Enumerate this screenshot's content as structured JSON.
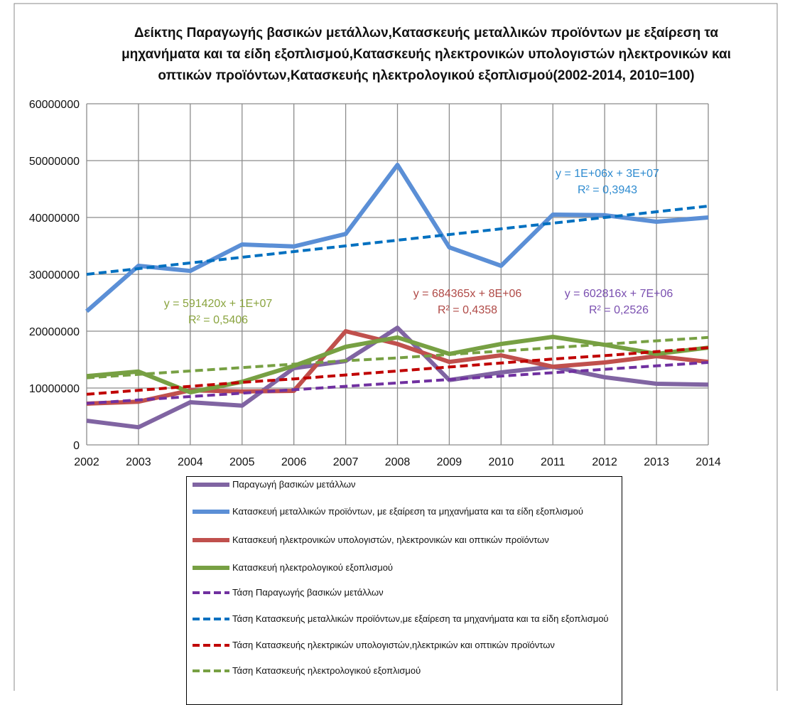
{
  "chart_data": {
    "type": "line",
    "title": "Δείκτης Παραγωγής  βασικών μετάλλων,Κατασκευής μεταλλικών προϊόντων με εξαίρεση τα μηχανήματα και τα είδη εξοπλισμού,Κατασκευής ηλεκτρονικών υπολογιστών ηλεκτρονικών και οπτικών προϊόντων,Κατασκευής ηλεκτρολογικού εξοπλισμού(2002-2014, 2010=100)",
    "x": [
      2002,
      2003,
      2004,
      2005,
      2006,
      2007,
      2008,
      2009,
      2010,
      2011,
      2012,
      2013,
      2014
    ],
    "xlim": [
      2002,
      2014
    ],
    "xticks": [
      2002,
      2003,
      2004,
      2005,
      2006,
      2007,
      2008,
      2009,
      2010,
      2011,
      2012,
      2013,
      2014
    ],
    "ylim": [
      0,
      60000000
    ],
    "yticks": [
      0,
      10000000,
      20000000,
      30000000,
      40000000,
      50000000,
      60000000
    ],
    "grid": true,
    "series": [
      {
        "name": "Παραγωγή βασικών μετάλλων",
        "color": "#8064a2",
        "style": "solid",
        "values": [
          4250000,
          3100000,
          7500000,
          6900000,
          13500000,
          14750000,
          20600000,
          11400000,
          12750000,
          13750000,
          11900000,
          10750000,
          10600000
        ]
      },
      {
        "name": "Κατασκευή μεταλλικών προϊόντων, με εξαίρεση τα μηχανήματα και τα είδη εξοπλισμού",
        "color": "#5b8fd6",
        "style": "solid",
        "values": [
          23500000,
          31500000,
          30600000,
          35250000,
          34900000,
          37100000,
          49250000,
          34750000,
          31500000,
          40500000,
          40400000,
          39250000,
          40000000
        ]
      },
      {
        "name": "Κατασκευή ηλεκτρονικών υπολογιστών, ηλεκτρονικών και οπτικών προϊόντων",
        "color": "#c0504d",
        "style": "solid",
        "values": [
          7250000,
          7600000,
          9600000,
          9400000,
          9500000,
          20000000,
          17750000,
          14600000,
          15750000,
          13750000,
          14500000,
          15600000,
          14600000
        ]
      },
      {
        "name": "Κατασκευή ηλεκτρολογικού εξοπλισμού",
        "color": "#77a043",
        "style": "solid",
        "values": [
          12100000,
          12900000,
          9250000,
          11100000,
          13900000,
          17250000,
          18900000,
          16000000,
          17750000,
          19000000,
          17600000,
          16000000,
          17100000
        ]
      },
      {
        "name": "Τάση Παραγωγής βασικών μετάλλων",
        "color": "#7030a0",
        "style": "dashed",
        "values": [
          7300000,
          7900000,
          8500000,
          9100000,
          9700000,
          10300000,
          10900000,
          11500000,
          12100000,
          12700000,
          13300000,
          13900000,
          14500000
        ]
      },
      {
        "name": "Τάση Κατασκευής μεταλλικών προϊόντων,με εξαίρεση τα μηχανήματα και τα είδη εξοπλισμού",
        "color": "#0070c0",
        "style": "dashed",
        "values": [
          30000000,
          31000000,
          32000000,
          33000000,
          34000000,
          35000000,
          36000000,
          37000000,
          38000000,
          39000000,
          40000000,
          41000000,
          42000000
        ]
      },
      {
        "name": "Τάση Κατασκευής ηλεκτρικών υπολογιστών,ηλεκτρικών και οπτικών προϊόντων",
        "color": "#c00000",
        "style": "dashed",
        "values": [
          8900000,
          9600000,
          10300000,
          11000000,
          11600000,
          12300000,
          13000000,
          13700000,
          14400000,
          15100000,
          15700000,
          16400000,
          17100000
        ]
      },
      {
        "name": "Τάση Κατασκευής ηλεκτρολογικού εξοπλισμού",
        "color": "#77a043",
        "style": "dashed",
        "values": [
          11800000,
          12400000,
          13000000,
          13600000,
          14200000,
          14800000,
          15300000,
          15900000,
          16500000,
          17100000,
          17700000,
          18300000,
          18900000
        ]
      }
    ],
    "annotations": [
      {
        "lines": [
          "y = 1E+06x + 3E+07",
          "R² = 0,3943"
        ],
        "color": "#2e8bd0"
      },
      {
        "lines": [
          "y = 591420x + 1E+07",
          "R² = 0,5406"
        ],
        "color": "#8aa43f"
      },
      {
        "lines": [
          "y = 684365x + 8E+06",
          "R² = 0,4358"
        ],
        "color": "#b04a47"
      },
      {
        "lines": [
          "y = 602816x + 7E+06",
          "R² = 0,2526"
        ],
        "color": "#7a4fb0"
      }
    ]
  }
}
